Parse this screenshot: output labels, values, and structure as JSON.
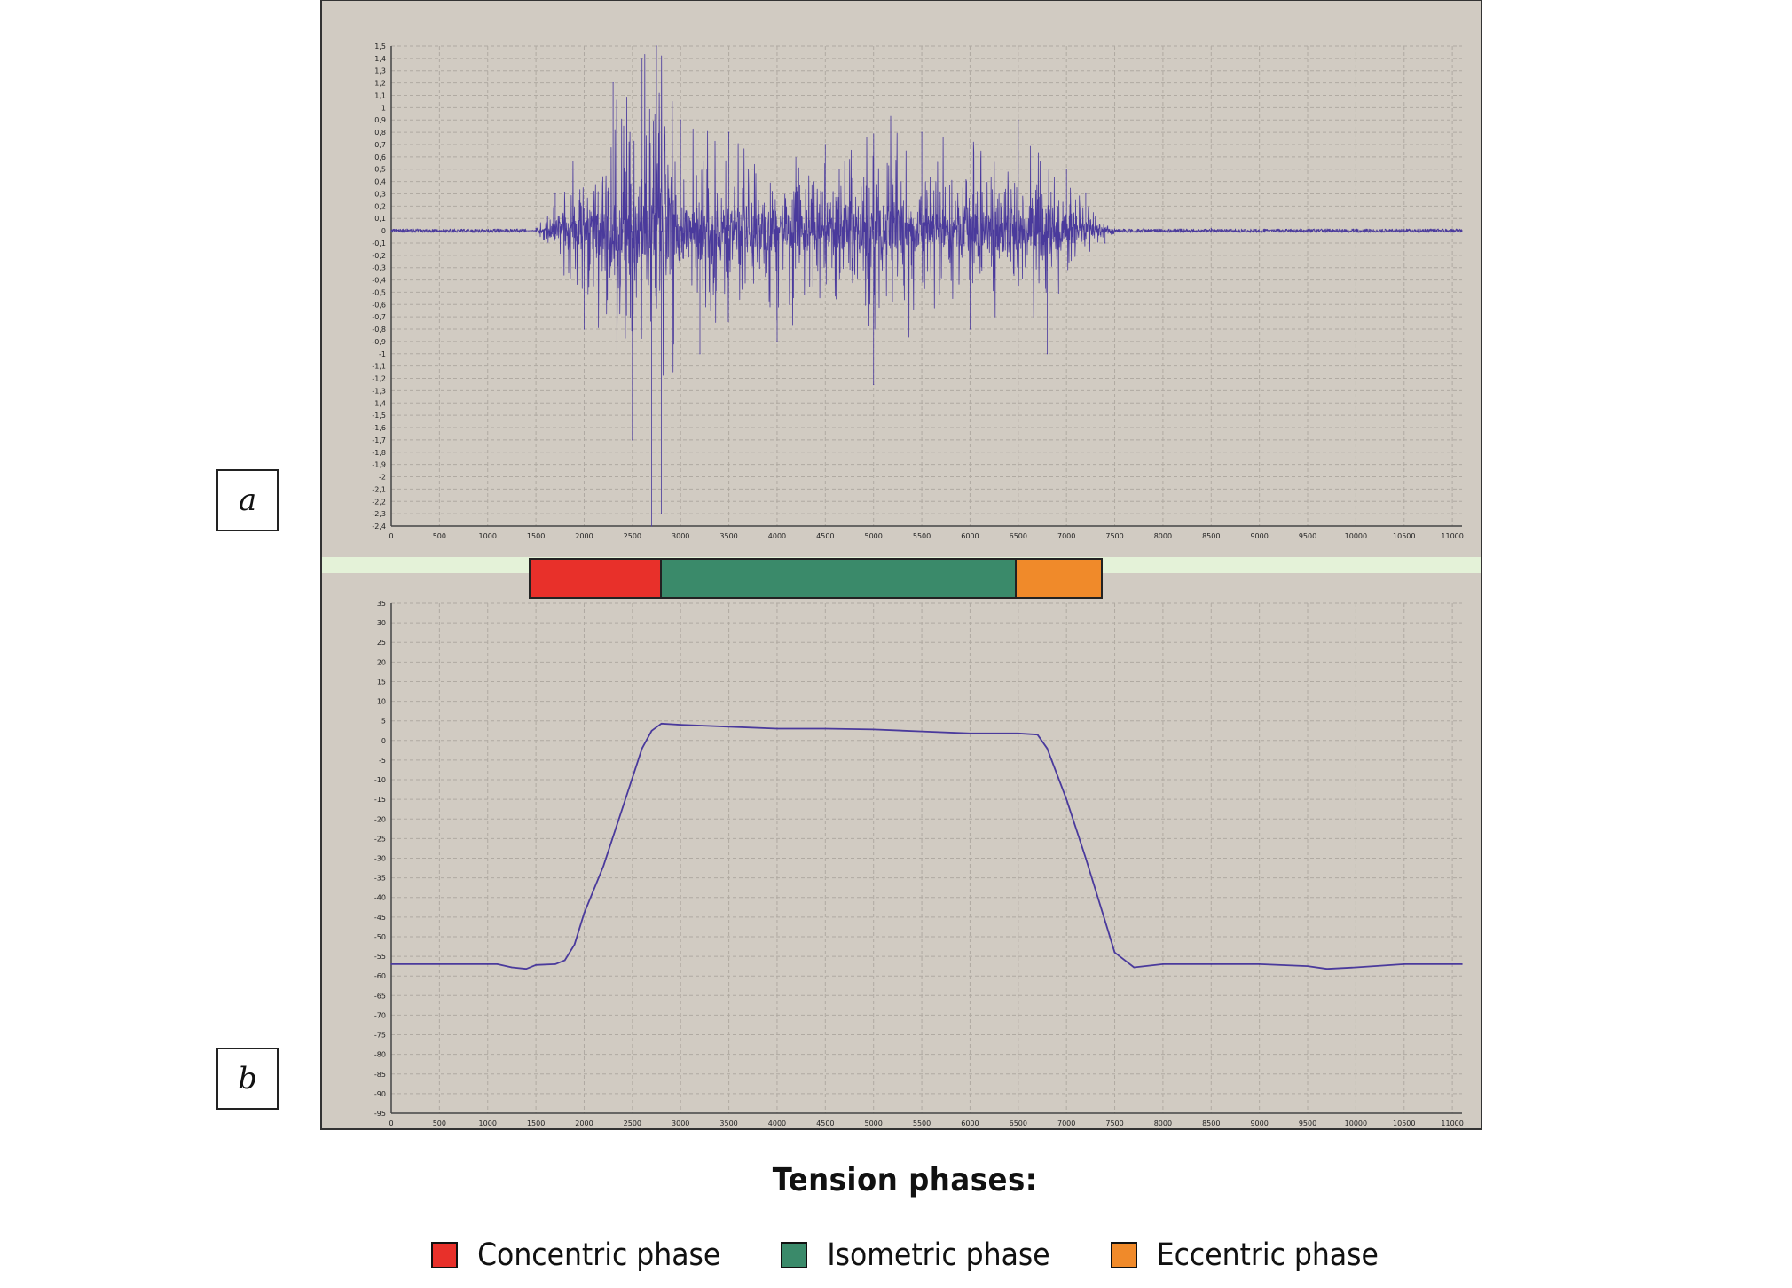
{
  "panels": {
    "a": "a",
    "b": "b"
  },
  "legend": {
    "title": "Tension phases:",
    "items": [
      {
        "label": "Concentric phase",
        "color": "#e8302a"
      },
      {
        "label": "Isometric phase",
        "color": "#3a8a6a"
      },
      {
        "label": "Eccentric phase",
        "color": "#f08a2a"
      }
    ]
  },
  "colors": {
    "plot_bg": "#d1cbc2",
    "grid": "#b0aaa2",
    "trace": "#4a3a9c",
    "axis_text": "#222222",
    "axis_label": "#e05a3a",
    "separator": "#e4f2d8"
  },
  "chart_data": [
    {
      "type": "line",
      "title": "",
      "xlabel": "",
      "ylabel": "",
      "xlim": [
        0,
        11100
      ],
      "ylim": [
        -2.4,
        1.5
      ],
      "x_ticks": [
        0,
        500,
        1000,
        1500,
        2000,
        2500,
        3000,
        3500,
        4000,
        4500,
        5000,
        5500,
        6000,
        6500,
        7000,
        7500,
        8000,
        8500,
        9000,
        9500,
        10000,
        10500,
        11000
      ],
      "y_ticks": [
        1.5,
        1.4,
        1.3,
        1.2,
        1.1,
        1,
        0.9,
        0.8,
        0.7,
        0.6,
        0.5,
        0.4,
        0.3,
        0.2,
        0.1,
        0,
        -0.1,
        -0.2,
        -0.3,
        -0.4,
        -0.5,
        -0.6,
        -0.7,
        -0.8,
        -0.9,
        -1,
        -1.1,
        -1.2,
        -1.3,
        -1.4,
        -1.5,
        -1.6,
        -1.7,
        -1.8,
        -1.9,
        -2,
        -2.1,
        -2.2,
        -2.3,
        -2.4
      ],
      "grid": true,
      "series": [
        {
          "x": [
            0,
            1400,
            1500,
            1700,
            2000,
            2300,
            2500,
            2600,
            2700,
            2750,
            2800,
            3000,
            3200,
            3500,
            4000,
            4500,
            5000,
            5500,
            6000,
            6500,
            6800,
            7000,
            7200,
            7400,
            7800,
            8500,
            9500,
            10500,
            11100
          ],
          "y": [
            0,
            0,
            0.02,
            0.3,
            -0.8,
            1.2,
            -1.7,
            1.4,
            -2.4,
            1.5,
            -2.3,
            0.9,
            -1.0,
            0.8,
            -0.9,
            0.7,
            -1.25,
            0.8,
            -0.8,
            0.9,
            -1.0,
            0.5,
            0.3,
            -0.1,
            0.02,
            0.02,
            0.01,
            0.01,
            0
          ]
        }
      ]
    },
    {
      "type": "line",
      "title": "",
      "xlabel": "",
      "ylabel": "",
      "xlim": [
        0,
        11100
      ],
      "ylim": [
        -95,
        35
      ],
      "x_ticks": [
        0,
        500,
        1000,
        1500,
        2000,
        2500,
        3000,
        3500,
        4000,
        4500,
        5000,
        5500,
        6000,
        6500,
        7000,
        7500,
        8000,
        8500,
        9000,
        9500,
        10000,
        10500,
        11000
      ],
      "y_ticks": [
        35,
        30,
        25,
        20,
        15,
        10,
        5,
        0,
        -5,
        -10,
        -15,
        -20,
        -25,
        -30,
        -35,
        -40,
        -45,
        -50,
        -55,
        -60,
        -65,
        -70,
        -75,
        -80,
        -85,
        -90,
        -95
      ],
      "grid": true,
      "series": [
        {
          "x": [
            0,
            1000,
            1100,
            1250,
            1400,
            1500,
            1700,
            1800,
            1900,
            2000,
            2200,
            2400,
            2600,
            2700,
            2800,
            3000,
            3500,
            4000,
            4500,
            5000,
            5500,
            6000,
            6500,
            6700,
            6800,
            7000,
            7200,
            7400,
            7500,
            7700,
            8000,
            8500,
            9000,
            9500,
            9700,
            10000,
            10500,
            11100
          ],
          "y": [
            -57,
            -57,
            -57,
            -57.8,
            -58.2,
            -57.2,
            -57,
            -56,
            -52,
            -44,
            -32,
            -17,
            -2,
            2.5,
            4.3,
            4,
            3.5,
            3,
            3,
            2.8,
            2.3,
            1.8,
            1.8,
            1.5,
            -2,
            -15,
            -30,
            -46,
            -54,
            -57.8,
            -57,
            -57,
            -57,
            -57.5,
            -58.2,
            -57.8,
            -57,
            -57
          ]
        }
      ]
    }
  ]
}
